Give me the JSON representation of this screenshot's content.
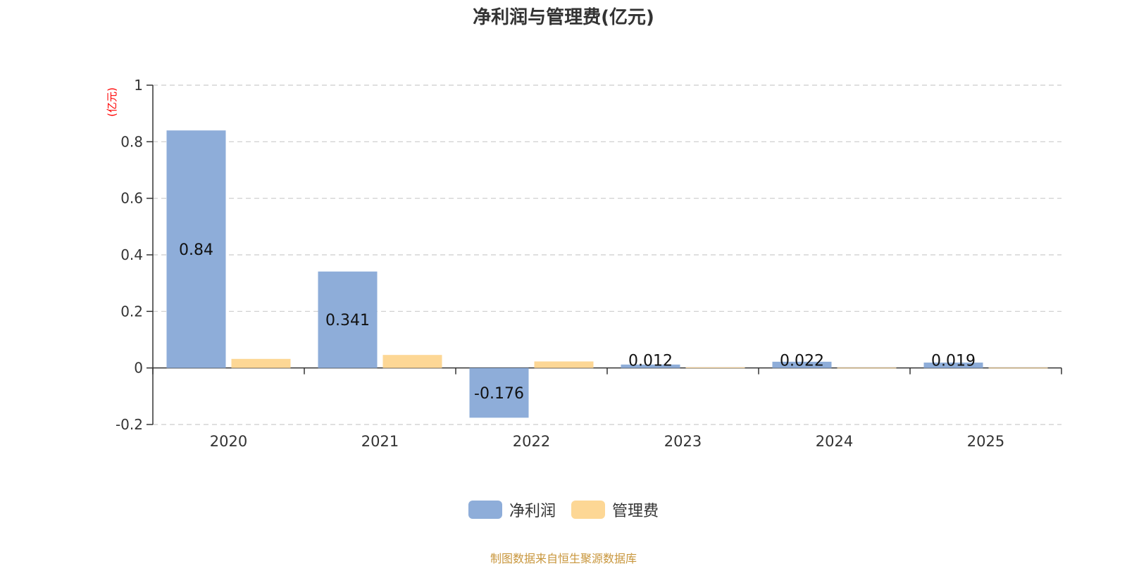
{
  "chart_data": {
    "type": "bar",
    "title": "净利润与管理费(亿元)",
    "ylabel": "(亿元)",
    "xlabel": "",
    "categories": [
      "2020",
      "2021",
      "2022",
      "2023",
      "2024",
      "2025"
    ],
    "series": [
      {
        "name": "净利润",
        "color": "#8eadd9",
        "values": [
          0.84,
          0.341,
          -0.176,
          0.012,
          0.022,
          0.019
        ],
        "labels": [
          "0.84",
          "0.341",
          "-0.176",
          "0.012",
          "0.022",
          "0.019"
        ]
      },
      {
        "name": "管理费",
        "color": "#fdd795",
        "values": [
          0.032,
          0.046,
          0.023,
          0.002,
          0.001,
          0.001
        ]
      }
    ],
    "ylim": [
      -0.2,
      1
    ],
    "yticks": [
      -0.2,
      0,
      0.2,
      0.4,
      0.6,
      0.8,
      1
    ],
    "ytick_labels": [
      "-0.2",
      "0",
      "0.2",
      "0.4",
      "0.6",
      "0.8",
      "1"
    ],
    "grid": true,
    "legend_position": "bottom-center"
  },
  "source_text": "制图数据来自恒生聚源数据库"
}
